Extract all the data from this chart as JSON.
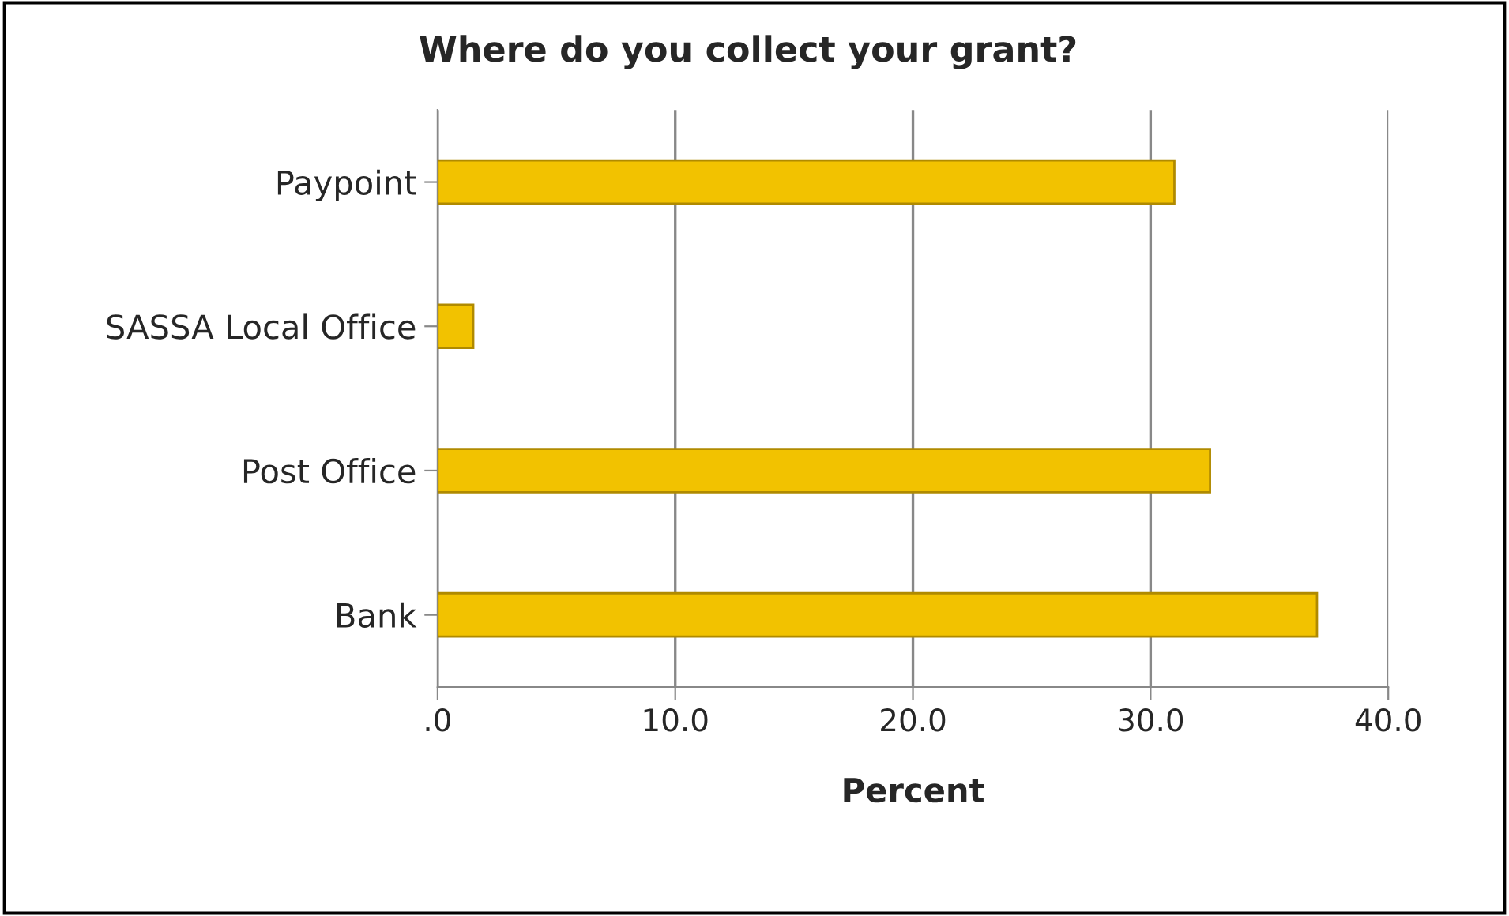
{
  "chart_data": {
    "type": "bar",
    "orientation": "horizontal",
    "title": "Where do you collect your grant?",
    "xlabel": "Percent",
    "categories": [
      "Paypoint",
      "SASSA Local Office",
      "Post Office",
      "Bank"
    ],
    "values": [
      31.0,
      1.5,
      32.5,
      37.0
    ],
    "color": "#f2c200",
    "xlim": [
      0,
      40
    ],
    "xticks": [
      {
        "value": 0,
        "label": ".0"
      },
      {
        "value": 10,
        "label": "10.0"
      },
      {
        "value": 20,
        "label": "20.0"
      },
      {
        "value": 30,
        "label": "30.0"
      },
      {
        "value": 40,
        "label": "40.0"
      }
    ],
    "grid": "x"
  }
}
